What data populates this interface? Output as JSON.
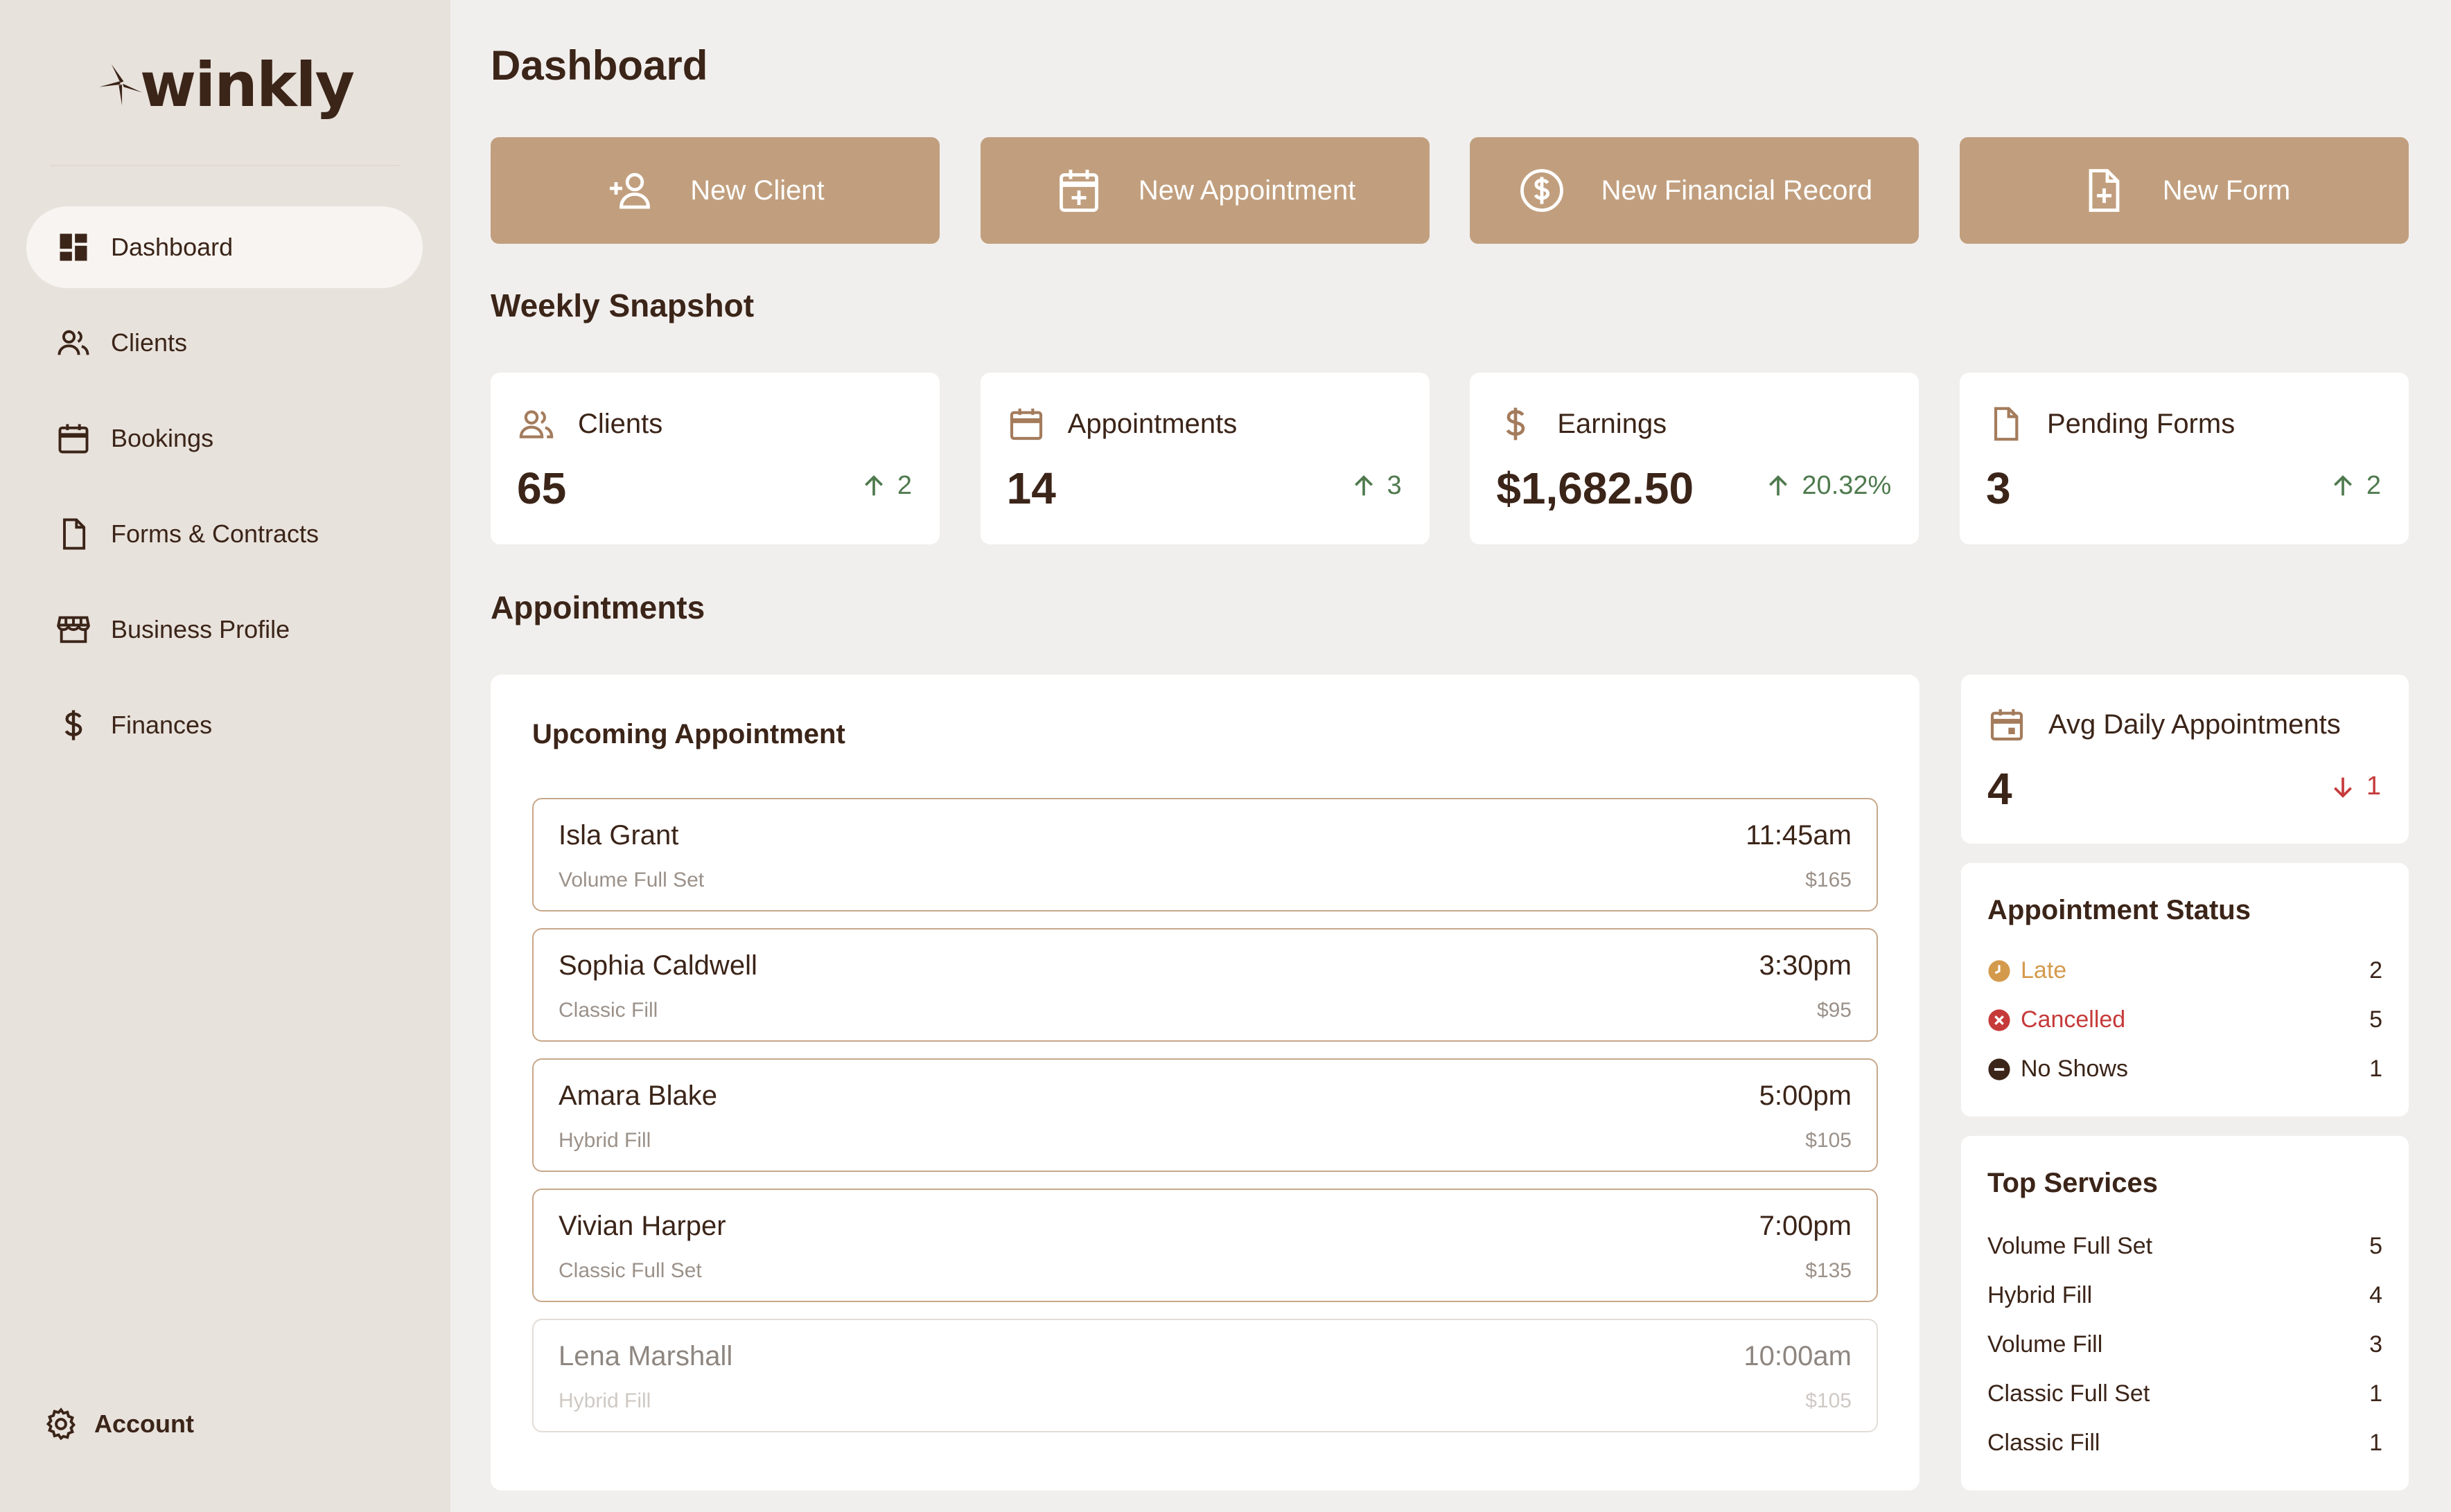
{
  "brand": {
    "name": "winkly"
  },
  "sidebar": {
    "items": [
      {
        "label": "Dashboard",
        "icon": "dashboard-icon",
        "active": true
      },
      {
        "label": "Clients",
        "icon": "users-icon"
      },
      {
        "label": "Bookings",
        "icon": "calendar-icon"
      },
      {
        "label": "Forms & Contracts",
        "icon": "document-icon"
      },
      {
        "label": "Business Profile",
        "icon": "storefront-icon"
      },
      {
        "label": "Finances",
        "icon": "dollar-icon"
      }
    ],
    "account_label": "Account"
  },
  "page": {
    "title": "Dashboard"
  },
  "actions": [
    {
      "label": "New Client",
      "icon": "add-user-icon"
    },
    {
      "label": "New Appointment",
      "icon": "calendar-plus-icon"
    },
    {
      "label": "New Financial Record",
      "icon": "dollar-circle-icon"
    },
    {
      "label": "New Form",
      "icon": "document-plus-icon"
    }
  ],
  "weekly_snapshot": {
    "title": "Weekly Snapshot",
    "stats": [
      {
        "label": "Clients",
        "value": "65",
        "delta": "2",
        "trend": "up",
        "icon": "users-icon"
      },
      {
        "label": "Appointments",
        "value": "14",
        "delta": "3",
        "trend": "up",
        "icon": "calendar-icon"
      },
      {
        "label": "Earnings",
        "value": "$1,682.50",
        "delta": "20.32%",
        "trend": "up",
        "icon": "dollar-icon"
      },
      {
        "label": "Pending Forms",
        "value": "3",
        "delta": "2",
        "trend": "up",
        "icon": "document-icon"
      }
    ]
  },
  "appointments": {
    "title": "Appointments",
    "upcoming_title": "Upcoming Appointment",
    "upcoming": [
      {
        "name": "Isla Grant",
        "service": "Volume Full Set",
        "time": "11:45am",
        "price": "$165"
      },
      {
        "name": "Sophia Caldwell",
        "service": "Classic Fill",
        "time": "3:30pm",
        "price": "$95"
      },
      {
        "name": "Amara Blake",
        "service": "Hybrid Fill",
        "time": "5:00pm",
        "price": "$105"
      },
      {
        "name": "Vivian Harper",
        "service": "Classic Full Set",
        "time": "7:00pm",
        "price": "$135"
      },
      {
        "name": "Lena Marshall",
        "service": "Hybrid Fill",
        "time": "10:00am",
        "price": "$105",
        "faded": true
      }
    ],
    "avg_daily": {
      "label": "Avg Daily Appointments",
      "value": "4",
      "delta": "1",
      "trend": "down"
    },
    "status": {
      "title": "Appointment Status",
      "rows": [
        {
          "label": "Late",
          "count": "2",
          "color": "#d49a4c"
        },
        {
          "label": "Cancelled",
          "count": "5",
          "color": "#c63a3a"
        },
        {
          "label": "No Shows",
          "count": "1",
          "color": "#3b2418"
        }
      ]
    },
    "top_services": {
      "title": "Top Services",
      "rows": [
        {
          "label": "Volume Full Set",
          "count": "5"
        },
        {
          "label": "Hybrid Fill",
          "count": "4"
        },
        {
          "label": "Volume Fill",
          "count": "3"
        },
        {
          "label": "Classic Full Set",
          "count": "1"
        },
        {
          "label": "Classic Fill",
          "count": "1"
        }
      ]
    }
  },
  "colors": {
    "accent": "#c19f7e",
    "sidebar_bg": "#e8e2dc",
    "page_bg": "#f1efed",
    "text": "#3b2418",
    "positive": "#4f7a4e",
    "negative": "#c63a3a"
  }
}
